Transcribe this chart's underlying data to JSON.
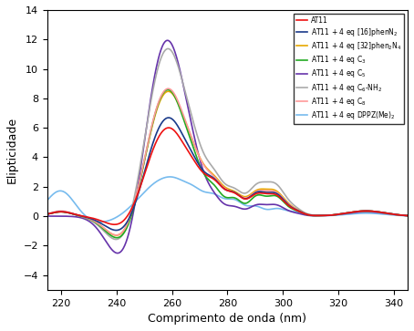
{
  "xlabel": "Comprimento de onda (nm)",
  "ylabel": "Elipticidade",
  "xlim": [
    215,
    345
  ],
  "ylim": [
    -5,
    14
  ],
  "yticks": [
    -4,
    -2,
    0,
    2,
    4,
    6,
    8,
    10,
    12,
    14
  ],
  "xticks": [
    220,
    240,
    260,
    280,
    300,
    320,
    340
  ],
  "legend": [
    {
      "label": "AT11",
      "color": "#EE1111",
      "lw": 1.2
    },
    {
      "label": "AT11 + 4 eq [16]phenN$_2$",
      "color": "#1A3A8A",
      "lw": 1.2
    },
    {
      "label": "AT11 + 4 eq [32]phen$_2$N$_4$",
      "color": "#E8A800",
      "lw": 1.2
    },
    {
      "label": "AT11 + 4 eq C$_3$",
      "color": "#22AA22",
      "lw": 1.2
    },
    {
      "label": "AT11 + 4 eq C$_5$",
      "color": "#6633AA",
      "lw": 1.2
    },
    {
      "label": "AT11 + 4 eq C$_6$-NH$_2$",
      "color": "#AAAAAA",
      "lw": 1.2
    },
    {
      "label": "AT11 + 4 eq C$_8$",
      "color": "#FF9999",
      "lw": 1.2
    },
    {
      "label": "AT11 + 4 eq DPPZ(Me)$_2$",
      "color": "#77BBEE",
      "lw": 1.2
    }
  ]
}
